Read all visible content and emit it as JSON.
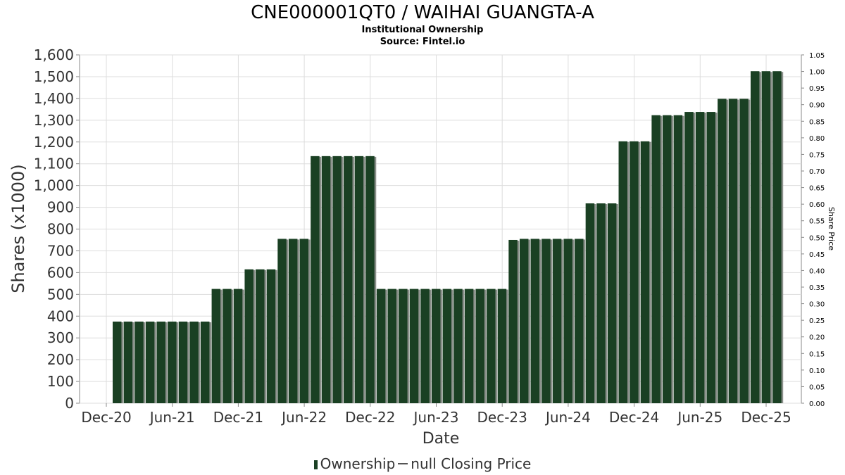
{
  "chart_data": {
    "type": "bar",
    "title": "CNE000001QT0 / WAIHAI GUANGTA-A",
    "subtitle": "Institutional Ownership",
    "source": "Source: Fintel.io",
    "xlabel": "Date",
    "ylabel": "Shares (x1000)",
    "y2label": "Share Price",
    "ylim": [
      0,
      1600
    ],
    "y2lim": [
      0,
      1.05
    ],
    "y_ticks": [
      "0",
      "100",
      "200",
      "300",
      "400",
      "500",
      "600",
      "700",
      "800",
      "900",
      "1,000",
      "1,100",
      "1,200",
      "1,300",
      "1,400",
      "1,500",
      "1,600"
    ],
    "y2_ticks": [
      "0.00",
      "0.05",
      "0.10",
      "0.15",
      "0.20",
      "0.25",
      "0.30",
      "0.35",
      "0.40",
      "0.45",
      "0.50",
      "0.55",
      "0.60",
      "0.65",
      "0.70",
      "0.75",
      "0.80",
      "0.85",
      "0.90",
      "0.95",
      "1.00",
      "1.05"
    ],
    "x_ticks": [
      "Dec-20",
      "Jun-21",
      "Dec-21",
      "Jun-22",
      "Dec-22",
      "Jun-23",
      "Dec-23",
      "Jun-24",
      "Dec-24",
      "Jun-25",
      "Dec-25"
    ],
    "grid": true,
    "bar_color": "#1a4023",
    "series": [
      {
        "name": "Ownership",
        "values": [
          375,
          375,
          375,
          375,
          375,
          375,
          375,
          375,
          375,
          525,
          525,
          525,
          615,
          615,
          615,
          755,
          755,
          755,
          1135,
          1135,
          1135,
          1135,
          1135,
          1135,
          525,
          525,
          525,
          525,
          525,
          525,
          525,
          525,
          525,
          525,
          525,
          525,
          750,
          755,
          755,
          755,
          755,
          755,
          755,
          918,
          918,
          918,
          1203,
          1203,
          1203,
          1323,
          1323,
          1323,
          1338,
          1338,
          1338,
          1398,
          1398,
          1398,
          1525,
          1525,
          1525
        ]
      }
    ],
    "legend": [
      {
        "label": "Ownership",
        "marker": "bar"
      },
      {
        "label": "null Closing Price",
        "marker": "line"
      }
    ],
    "legend_position": "bottom"
  }
}
